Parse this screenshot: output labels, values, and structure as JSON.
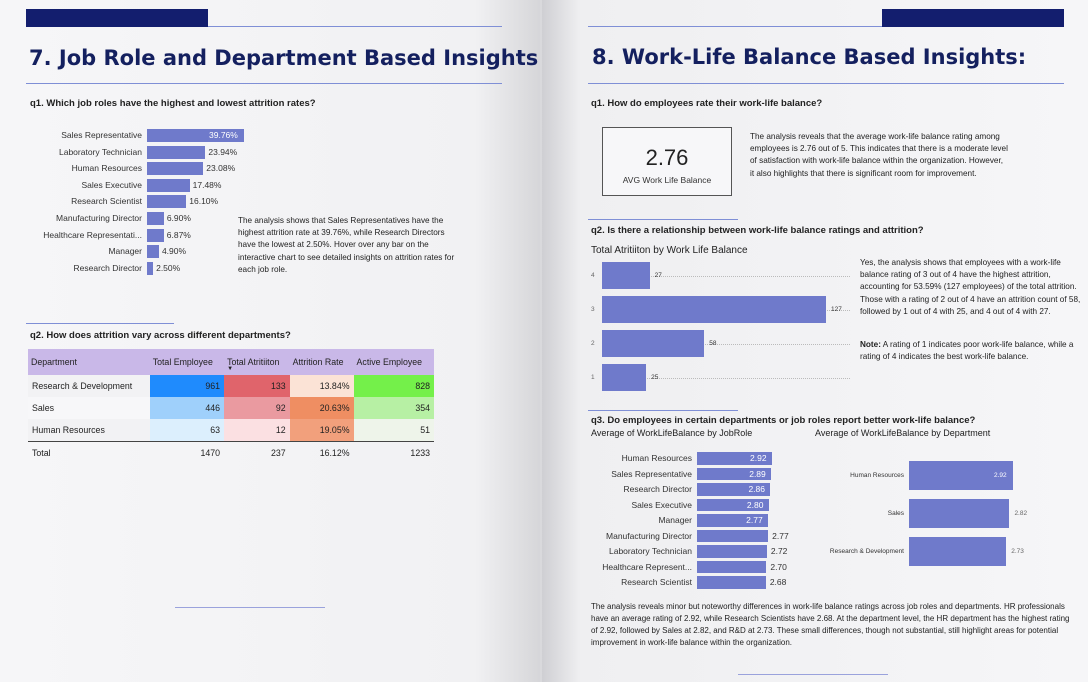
{
  "left": {
    "heading": "7. Job Role and Department Based Insights:",
    "q1": {
      "question": "q1. Which job roles have the highest and lowest attrition rates?",
      "paragraph": "The analysis shows that Sales Representatives have the highest attrition rate at 39.76%, while Research Directors have the lowest at 2.50%. Hover over any bar on the interactive chart to see detailed insights on attrition rates for each job role."
    },
    "q2": {
      "question": "q2. How does attrition vary across different departments?",
      "table": {
        "headers": [
          "Department",
          "Total Employee",
          "Total Atritiiton",
          "Attrition Rate",
          "Active Employee"
        ],
        "rows": [
          {
            "department": "Research & Development",
            "total_employee": "961",
            "total_attrition": "133",
            "attrition_rate": "13.84%",
            "active_employee": "828"
          },
          {
            "department": "Sales",
            "total_employee": "446",
            "total_attrition": "92",
            "attrition_rate": "20.63%",
            "active_employee": "354"
          },
          {
            "department": "Human Resources",
            "total_employee": "63",
            "total_attrition": "12",
            "attrition_rate": "19.05%",
            "active_employee": "51"
          }
        ],
        "total": {
          "label": "Total",
          "total_employee": "1470",
          "total_attrition": "237",
          "attrition_rate": "16.12%",
          "active_employee": "1233"
        }
      }
    }
  },
  "right": {
    "heading": "8. Work-Life Balance Based Insights:",
    "q1": {
      "question": "q1. How do employees rate their work-life balance?",
      "kpi_value": "2.76",
      "kpi_label": "AVG Work Life Balance",
      "paragraph": "The analysis reveals that the average work-life balance rating among employees is 2.76 out of 5. This indicates that there is a moderate level of satisfaction with work-life balance within the organization. However, it also highlights that there is significant room for improvement."
    },
    "q2": {
      "question": "q2. Is there a relationship between work-life balance ratings and attrition?",
      "chart_title": "Total Atritiiton by Work Life Balance",
      "paragraph": "Yes, the analysis shows that employees with a work-life balance rating of 3 out of 4 have the highest attrition, accounting for 53.59% (127 employees) of the total attrition. Those with a rating of 2 out of 4 have an attrition count of 58, followed by 1 out of 4 with 25, and 4 out of 4 with 27.",
      "note_label": "Note:",
      "note_text": " A rating of 1 indicates poor work-life balance, while a rating of 4 indicates the best work-life balance."
    },
    "q3": {
      "question": "q3. Do employees in certain departments or job roles report better work-life balance?",
      "paragraph": "The analysis reveals minor but noteworthy differences in work-life balance ratings across job roles and departments. HR professionals have an average rating of 2.92, while Research Scientists have 2.68. At the department level, the HR department has the highest rating of 2.92, followed by Sales at 2.82, and R&D at 2.73. These small differences, though not substantial, still highlight areas for potential improvement in work-life balance within the organization."
    }
  },
  "colors": {
    "navy": "#131e6e",
    "bar": "#6f7acb",
    "rule": "#7f8fd6",
    "header": "#c9b8e8"
  },
  "chart_data": [
    {
      "type": "bar",
      "orientation": "horizontal",
      "categories": [
        "Sales Representative",
        "Laboratory Technician",
        "Human Resources",
        "Sales Executive",
        "Research Scientist",
        "Manufacturing Director",
        "Healthcare Representati...",
        "Manager",
        "Research Director"
      ],
      "values": [
        39.76,
        23.94,
        23.08,
        17.48,
        16.1,
        6.9,
        6.87,
        4.9,
        2.5
      ],
      "labels": [
        "39.76%",
        "23.94%",
        "23.08%",
        "17.48%",
        "16.10%",
        "6.90%",
        "6.87%",
        "4.90%",
        "2.50%"
      ]
    },
    {
      "type": "bar",
      "orientation": "horizontal",
      "title": "Total Atritiiton by Work Life Balance",
      "categories": [
        "4",
        "3",
        "2",
        "1"
      ],
      "values": [
        27,
        127,
        58,
        25
      ],
      "xlim": [
        0,
        127
      ]
    },
    {
      "type": "bar",
      "orientation": "horizontal",
      "title": "Average of WorkLifeBalance by JobRole",
      "categories": [
        "Human Resources",
        "Sales Representative",
        "Research Director",
        "Sales Executive",
        "Manager",
        "Manufacturing Director",
        "Laboratory Technician",
        "Healthcare Represent...",
        "Research Scientist"
      ],
      "values": [
        2.92,
        2.89,
        2.86,
        2.8,
        2.77,
        2.77,
        2.72,
        2.7,
        2.68
      ],
      "labels": [
        "2.92",
        "2.89",
        "2.86",
        "2.80",
        "2.77",
        "2.77",
        "2.72",
        "2.70",
        "2.68"
      ]
    },
    {
      "type": "bar",
      "orientation": "horizontal",
      "title": "Average of WorkLifeBalance by Department",
      "categories": [
        "Human Resources",
        "Sales",
        "Research & Development"
      ],
      "values": [
        2.92,
        2.82,
        2.73
      ],
      "labels": [
        "2.92",
        "2.82",
        "2.73"
      ]
    }
  ]
}
